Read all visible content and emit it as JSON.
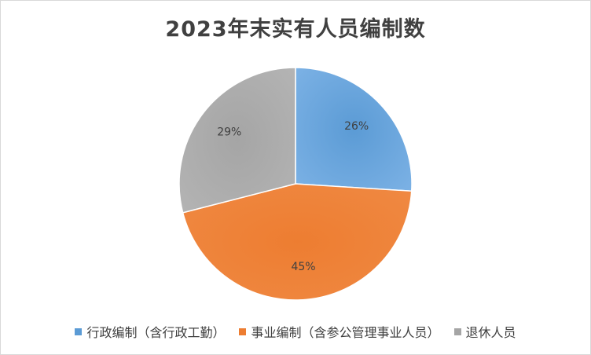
{
  "chart_data": {
    "type": "pie",
    "title": "2023年末实有人员编制数",
    "categories": [
      "行政编制（含行政工勤）",
      "事业编制（含参公管理事业人员）",
      "退休人员"
    ],
    "values": [
      26,
      45,
      29
    ],
    "value_labels": [
      "26%",
      "45%",
      "29%"
    ],
    "colors": [
      "#5B9BD5",
      "#ED7D31",
      "#A5A5A5"
    ],
    "legend_position": "bottom"
  }
}
